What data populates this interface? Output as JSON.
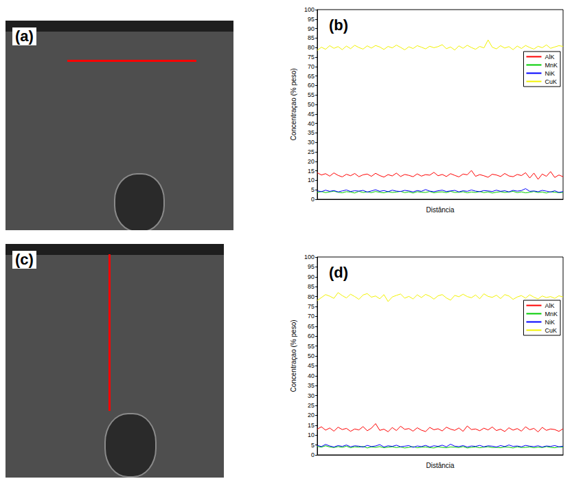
{
  "images": [
    {
      "label": "(a)"
    },
    {
      "label": "(c)"
    }
  ],
  "chart_data": [
    {
      "type": "line",
      "title": "(b)",
      "x_label": "Distância",
      "y_label": "Concentraçao (% peso)",
      "x": [
        1,
        2,
        3,
        4,
        5,
        6,
        7,
        8,
        9,
        10,
        11,
        12,
        13,
        14,
        15,
        16,
        17,
        18,
        19,
        20,
        21,
        22,
        23,
        24,
        25,
        26,
        27,
        28,
        29,
        30,
        31,
        32,
        33,
        34,
        35,
        36,
        37,
        38,
        39,
        40,
        41,
        42,
        43,
        44,
        45,
        46,
        47,
        48,
        49,
        50,
        51,
        52,
        53,
        54,
        55,
        56,
        57,
        58,
        59,
        60
      ],
      "xlim": [
        1,
        60
      ],
      "ylim": [
        0,
        100
      ],
      "yticks": [
        0,
        5,
        10,
        15,
        20,
        25,
        30,
        35,
        40,
        45,
        50,
        55,
        60,
        65,
        70,
        75,
        80,
        85,
        90,
        95,
        100
      ],
      "tick_labels": "y",
      "grid": false,
      "legend": "right",
      "series": [
        {
          "name": "AlK",
          "color": "#ff0000",
          "values": [
            14.0,
            12.8,
            13.5,
            12.2,
            13.9,
            12.6,
            11.8,
            13.2,
            12.4,
            13.6,
            11.9,
            12.9,
            13.3,
            12.1,
            13.7,
            12.5,
            11.7,
            13.0,
            12.3,
            13.8,
            12.0,
            13.1,
            12.6,
            11.9,
            13.4,
            12.2,
            13.0,
            12.7,
            14.2,
            12.4,
            13.1,
            12.0,
            13.5,
            12.6,
            11.8,
            13.3,
            12.9,
            15.2,
            12.1,
            13.0,
            12.4,
            11.6,
            13.2,
            12.8,
            12.0,
            13.6,
            12.3,
            11.9,
            13.1,
            12.5,
            14.0,
            11.2,
            13.8,
            10.5,
            13.3,
            12.1,
            14.6,
            11.5,
            12.8,
            11.9
          ]
        },
        {
          "name": "MnK",
          "color": "#00cc00",
          "values": [
            3.6,
            4.1,
            3.5,
            3.9,
            4.3,
            3.7,
            3.4,
            4.0,
            3.8,
            3.3,
            4.2,
            3.6,
            3.9,
            3.5,
            4.1,
            3.7,
            3.4,
            4.0,
            3.6,
            3.8,
            4.2,
            3.5,
            3.9,
            3.3,
            4.0,
            3.7,
            3.6,
            4.1,
            3.4,
            3.8,
            3.9,
            3.5,
            4.2,
            3.6,
            3.7,
            4.0,
            3.4,
            3.8,
            3.6,
            4.1,
            3.5,
            3.9,
            3.3,
            3.7,
            4.0,
            3.6,
            3.8,
            4.2,
            3.5,
            3.9,
            3.4,
            3.7,
            4.1,
            3.6,
            3.8,
            3.3,
            4.0,
            3.7,
            3.5,
            3.6
          ]
        },
        {
          "name": "NiK",
          "color": "#0000ff",
          "values": [
            4.5,
            4.0,
            4.8,
            4.2,
            4.6,
            3.9,
            4.4,
            4.9,
            4.1,
            4.5,
            4.3,
            4.7,
            3.8,
            4.4,
            5.0,
            4.2,
            4.6,
            4.0,
            4.8,
            4.3,
            4.1,
            4.7,
            4.4,
            3.9,
            4.6,
            4.2,
            5.1,
            4.3,
            4.0,
            4.5,
            4.8,
            4.1,
            4.4,
            4.7,
            3.9,
            4.5,
            4.2,
            4.9,
            4.3,
            4.0,
            4.6,
            4.4,
            4.1,
            4.8,
            4.2,
            4.5,
            3.9,
            4.7,
            4.3,
            4.6,
            5.6,
            4.2,
            4.4,
            4.0,
            4.7,
            4.3,
            3.8,
            4.5,
            3.6,
            4.1
          ]
        },
        {
          "name": "CuK",
          "color": "#f2f200",
          "values": [
            78.5,
            80.2,
            79.1,
            81.0,
            79.6,
            80.5,
            78.9,
            80.8,
            79.4,
            81.2,
            80.0,
            79.2,
            80.9,
            79.7,
            81.1,
            80.3,
            79.0,
            80.6,
            79.8,
            81.3,
            80.1,
            78.8,
            80.4,
            79.5,
            81.0,
            80.2,
            79.3,
            80.7,
            79.9,
            80.5,
            81.5,
            79.4,
            80.3,
            78.7,
            80.9,
            79.6,
            81.2,
            80.0,
            79.1,
            80.6,
            79.8,
            84.0,
            80.2,
            79.3,
            81.0,
            79.7,
            80.5,
            78.9,
            80.8,
            79.5,
            81.1,
            80.0,
            79.2,
            80.7,
            79.9,
            81.4,
            79.6,
            80.3,
            81.0,
            80.6
          ]
        }
      ]
    },
    {
      "type": "line",
      "title": "(d)",
      "x_label": "Distância",
      "y_label": "Concentraçao (% peso)",
      "x": [
        1,
        2,
        3,
        4,
        5,
        6,
        7,
        8,
        9,
        10,
        11,
        12,
        13,
        14,
        15,
        16,
        17,
        18,
        19,
        20,
        21,
        22,
        23,
        24,
        25,
        26,
        27,
        28,
        29,
        30,
        31,
        32,
        33,
        34,
        35,
        36,
        37,
        38,
        39,
        40,
        41,
        42,
        43,
        44,
        45,
        46,
        47,
        48,
        49,
        50,
        51,
        52,
        53,
        54,
        55,
        56,
        57,
        58,
        59,
        60
      ],
      "xlim": [
        1,
        60
      ],
      "ylim": [
        0,
        100
      ],
      "yticks": [
        0,
        5,
        10,
        15,
        20,
        25,
        30,
        35,
        40,
        45,
        50,
        55,
        60,
        65,
        70,
        75,
        80,
        85,
        90,
        95,
        100
      ],
      "tick_labels": "y",
      "grid": false,
      "legend": "right",
      "series": [
        {
          "name": "AlK",
          "color": "#ff0000",
          "values": [
            13.0,
            14.2,
            12.5,
            13.6,
            12.0,
            14.0,
            12.8,
            13.4,
            11.9,
            13.1,
            12.6,
            14.3,
            12.2,
            13.5,
            15.8,
            12.4,
            13.0,
            11.7,
            13.8,
            12.3,
            14.5,
            12.9,
            13.3,
            12.0,
            13.7,
            12.5,
            11.8,
            13.9,
            12.7,
            13.2,
            12.1,
            14.0,
            13.0,
            12.4,
            13.6,
            11.9,
            14.6,
            12.8,
            13.1,
            12.2,
            13.5,
            12.6,
            14.1,
            12.3,
            13.0,
            11.8,
            13.7,
            12.5,
            13.3,
            12.0,
            14.2,
            12.7,
            13.4,
            11.6,
            13.9,
            12.4,
            13.1,
            12.8,
            11.9,
            13.2
          ]
        },
        {
          "name": "MnK",
          "color": "#00cc00",
          "values": [
            4.3,
            3.9,
            4.6,
            4.0,
            3.7,
            4.2,
            3.8,
            4.4,
            3.6,
            4.1,
            3.9,
            4.3,
            3.5,
            4.0,
            3.8,
            4.2,
            3.6,
            3.9,
            4.1,
            3.7,
            4.0,
            3.5,
            3.8,
            4.2,
            3.6,
            3.9,
            4.0,
            3.7,
            3.5,
            4.1,
            3.8,
            3.6,
            4.0,
            3.9,
            3.7,
            4.2,
            3.5,
            3.8,
            4.0,
            3.6,
            3.9,
            4.1,
            3.7,
            3.8,
            3.6,
            4.0,
            3.9,
            3.5,
            4.1,
            3.7,
            3.8,
            4.0,
            3.6,
            3.9,
            3.7,
            4.2,
            3.8,
            3.6,
            4.0,
            3.9
          ]
        },
        {
          "name": "NiK",
          "color": "#0000ff",
          "values": [
            4.8,
            4.2,
            5.3,
            4.5,
            4.0,
            4.7,
            4.3,
            5.0,
            4.1,
            4.6,
            4.4,
            3.9,
            4.8,
            4.2,
            4.5,
            5.2,
            4.0,
            4.6,
            4.3,
            4.9,
            4.1,
            4.4,
            4.7,
            3.8,
            4.5,
            4.2,
            4.8,
            4.0,
            4.6,
            4.3,
            4.9,
            4.1,
            5.4,
            4.4,
            4.2,
            4.7,
            4.0,
            4.5,
            4.3,
            4.8,
            4.1,
            4.6,
            4.4,
            4.0,
            4.7,
            4.2,
            5.0,
            4.3,
            4.5,
            4.1,
            4.8,
            4.4,
            4.2,
            4.6,
            4.0,
            4.5,
            4.3,
            4.7,
            4.1,
            4.4
          ]
        },
        {
          "name": "CuK",
          "color": "#f2f200",
          "values": [
            78.0,
            79.5,
            81.0,
            80.2,
            79.1,
            82.0,
            80.5,
            79.3,
            81.2,
            80.0,
            78.6,
            80.8,
            81.5,
            79.7,
            80.3,
            78.9,
            81.0,
            77.5,
            79.8,
            80.6,
            81.3,
            79.2,
            80.1,
            78.8,
            80.9,
            79.5,
            81.1,
            80.2,
            78.7,
            80.4,
            81.0,
            79.3,
            78.2,
            80.6,
            79.9,
            81.2,
            80.0,
            79.4,
            80.8,
            78.9,
            81.4,
            80.1,
            79.6,
            80.7,
            79.0,
            81.0,
            80.3,
            78.6,
            79.8,
            80.5,
            79.2,
            80.9,
            79.7,
            78.8,
            80.3,
            79.5,
            80.0,
            79.1,
            80.4,
            79.8
          ]
        }
      ]
    }
  ]
}
